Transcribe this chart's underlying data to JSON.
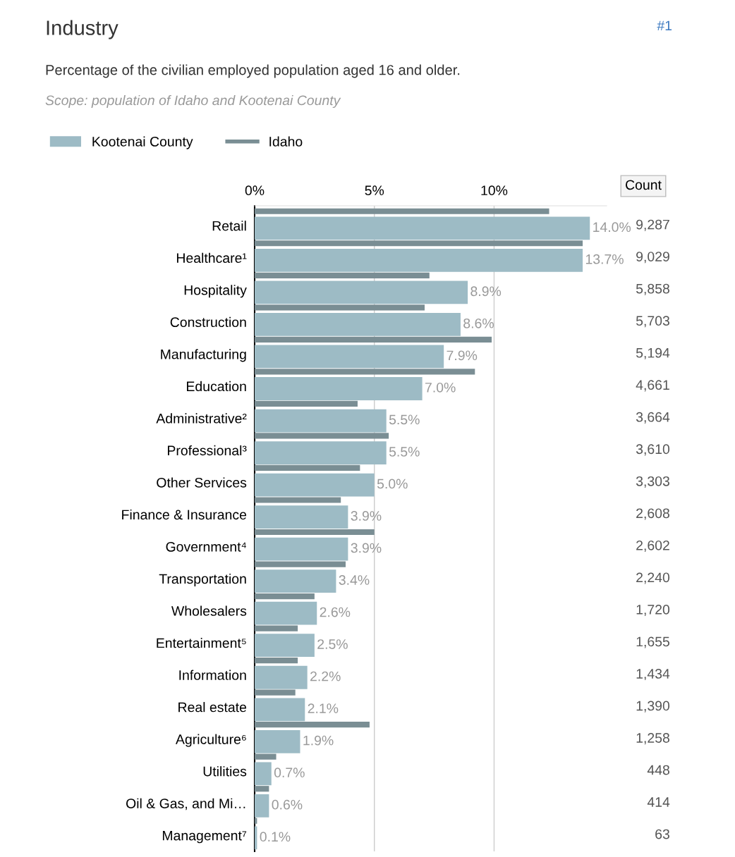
{
  "chart_data": {
    "type": "bar",
    "orientation": "horizontal",
    "title": "Industry",
    "subtitle": "Percentage of the civilian employed population aged 16 and older.",
    "annotations": [
      "Scope: population of Idaho and Kootenai County",
      "#1",
      "Count",
      "9,287",
      "9,029",
      "5,858",
      "5,703",
      "5,194",
      "4,661",
      "3,664",
      "3,610",
      "3,303",
      "2,608",
      "2,602",
      "2,240",
      "1,720",
      "1,655",
      "1,434",
      "1,390",
      "1,258",
      "448",
      "414",
      "63"
    ],
    "categories": [
      "Retail",
      "Healthcare¹",
      "Hospitality",
      "Construction",
      "Manufacturing",
      "Education",
      "Administrative²",
      "Professional³",
      "Other Services",
      "Finance & Insurance",
      "Government⁴",
      "Transportation",
      "Wholesalers",
      "Entertainment⁵",
      "Information",
      "Real estate",
      "Agriculture⁶",
      "Utilities",
      "Oil & Gas, and Mi…",
      "Management⁷"
    ],
    "series": [
      {
        "name": "Kootenai County",
        "color": "#9dbbc5",
        "values": [
          14.0,
          13.7,
          8.9,
          8.6,
          7.9,
          7.0,
          5.5,
          5.5,
          5.0,
          3.9,
          3.9,
          3.4,
          2.6,
          2.5,
          2.2,
          2.1,
          1.9,
          0.7,
          0.6,
          0.1
        ],
        "value_labels": [
          "14.0%",
          "13.7%",
          "8.9%",
          "8.6%",
          "7.9%",
          "7.0%",
          "5.5%",
          "5.5%",
          "5.0%",
          "3.9%",
          "3.9%",
          "3.4%",
          "2.6%",
          "2.5%",
          "2.2%",
          "2.1%",
          "1.9%",
          "0.7%",
          "0.6%",
          "0.1%"
        ]
      },
      {
        "name": "Idaho",
        "color": "#7a8e94",
        "values": [
          12.3,
          13.7,
          7.3,
          7.1,
          9.9,
          9.2,
          4.3,
          5.6,
          4.4,
          3.6,
          5.0,
          3.8,
          2.5,
          1.8,
          1.8,
          1.7,
          4.8,
          0.9,
          0.6,
          0.1
        ]
      }
    ],
    "xticks": [
      {
        "value": 0,
        "label": "0%"
      },
      {
        "value": 5,
        "label": "5%"
      },
      {
        "value": 10,
        "label": "10%"
      }
    ],
    "xlim": [
      0,
      14.7
    ],
    "grid": "x",
    "legend": "top left"
  }
}
